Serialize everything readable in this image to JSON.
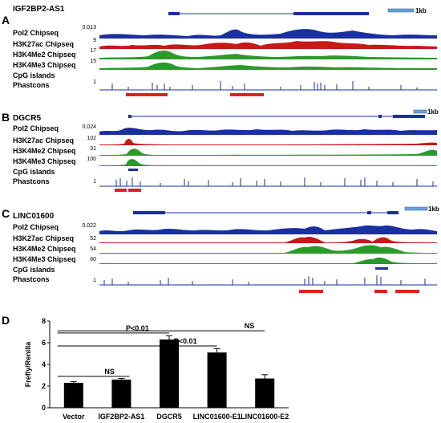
{
  "panels": [
    {
      "letter": "A",
      "gene": "IGF2BP2-AS1",
      "scale_bar": "1kb",
      "tracks": [
        {
          "name": "Pol2 Chipseq",
          "max": "0.013",
          "color": "#1a2fa0"
        },
        {
          "name": "H3K27ac Chipseq",
          "max": "9",
          "color": "#c81818"
        },
        {
          "name": "H3K4Me2 Chipseq",
          "max": "17",
          "color": "#2a9a2a"
        },
        {
          "name": "H3K4Me3 Chipseq",
          "max": "15",
          "color": "#2a9a2a"
        },
        {
          "name": "CpG islands",
          "max": "",
          "color": "#1a2fa0"
        },
        {
          "name": "Phastcons",
          "max": "1",
          "color": "#1a2fa0"
        }
      ]
    },
    {
      "letter": "B",
      "gene": "DGCR5",
      "scale_bar": "1kb",
      "tracks": [
        {
          "name": "Pol2 Chipseq",
          "max": "0.024",
          "color": "#1a2fa0"
        },
        {
          "name": "H3K27ac Chipseq",
          "max": "102",
          "color": "#c81818"
        },
        {
          "name": "H3K4Me2 Chipseq",
          "max": "31",
          "color": "#2a9a2a"
        },
        {
          "name": "H3K4Me3 Chipseq",
          "max": "100",
          "color": "#2a9a2a"
        },
        {
          "name": "CpG islands",
          "max": "",
          "color": "#1a2fa0"
        },
        {
          "name": "Phastcons",
          "max": "1",
          "color": "#1a2fa0"
        }
      ]
    },
    {
      "letter": "C",
      "gene": "LINC01600",
      "scale_bar": "1kb",
      "tracks": [
        {
          "name": "Pol2 Chipseq",
          "max": "0.022",
          "color": "#1a2fa0"
        },
        {
          "name": "H3K27ac Chipseq",
          "max": "52",
          "color": "#c81818"
        },
        {
          "name": "H3K4Me2 Chipseq",
          "max": "54",
          "color": "#2a9a2a"
        },
        {
          "name": "H3K4Me3 Chipseq",
          "max": "60",
          "color": "#2a9a2a"
        },
        {
          "name": "CpG islands",
          "max": "",
          "color": "#1a2fa0"
        },
        {
          "name": "Phastcons",
          "max": "1",
          "color": "#1a2fa0"
        }
      ]
    }
  ],
  "chart_data": {
    "type": "bar",
    "panel_letter": "D",
    "ylabel": "Frefly/Renilla",
    "categories": [
      "Vector",
      "IGF2BP2-AS1",
      "DGCR5",
      "LINC01600-E1",
      "LINC01600-E2"
    ],
    "values": [
      2.3,
      2.6,
      6.3,
      5.1,
      2.7
    ],
    "errors": [
      0.1,
      0.1,
      0.35,
      0.35,
      0.35
    ],
    "ylim": [
      0,
      8
    ],
    "yticks": [
      "0",
      "2",
      "4",
      "6",
      "8"
    ],
    "bar_color": "#000000",
    "comparisons": [
      {
        "from": 0,
        "to": 1,
        "label": "NS"
      },
      {
        "from": 0,
        "to": 2,
        "label": "P<0.01"
      },
      {
        "from": 0,
        "to": 3,
        "label": "P<0.01"
      },
      {
        "from": 0,
        "to": 4,
        "label": "NS"
      }
    ]
  }
}
